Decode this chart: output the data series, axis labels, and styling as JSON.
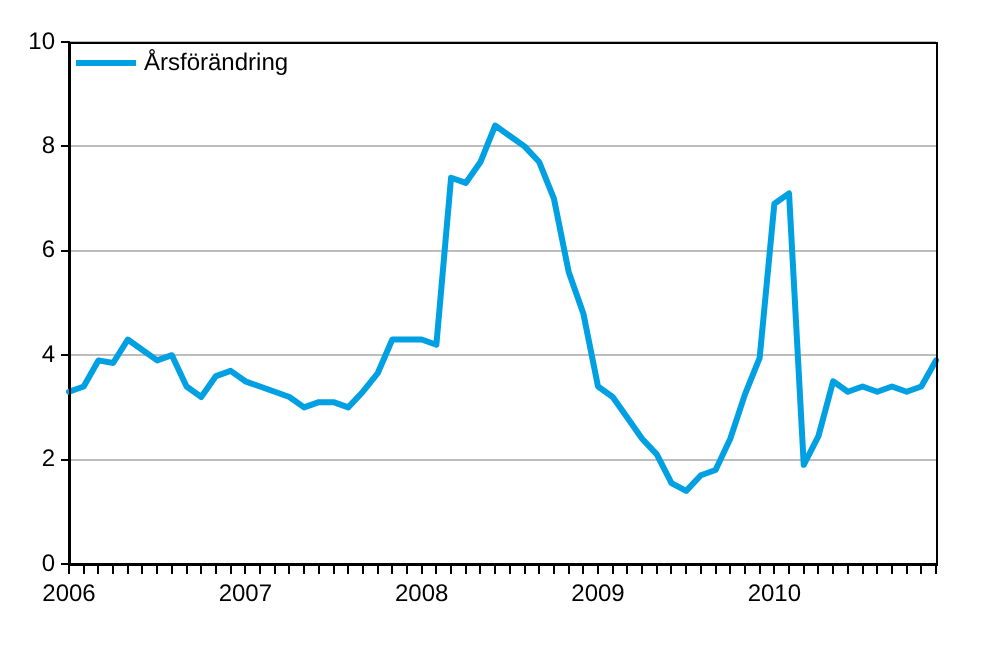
{
  "chart_data": {
    "type": "line",
    "categories": [
      "2006",
      null,
      null,
      null,
      null,
      null,
      null,
      null,
      null,
      null,
      null,
      null,
      "2007",
      null,
      null,
      null,
      null,
      null,
      null,
      null,
      null,
      null,
      null,
      null,
      "2008",
      null,
      null,
      null,
      null,
      null,
      null,
      null,
      null,
      null,
      null,
      null,
      "2009",
      null,
      null,
      null,
      null,
      null,
      null,
      null,
      null,
      null,
      null,
      null,
      "2010",
      null,
      null,
      null,
      null,
      null,
      null,
      null,
      null,
      null,
      null,
      null
    ],
    "series": [
      {
        "name": "Årsförändring",
        "color": "#00a0e3",
        "values": [
          3.3,
          3.4,
          3.9,
          3.85,
          4.3,
          4.1,
          3.9,
          4.0,
          3.4,
          3.2,
          3.6,
          3.7,
          3.5,
          3.4,
          3.3,
          3.2,
          3.0,
          3.1,
          3.1,
          3.0,
          3.3,
          3.65,
          4.3,
          4.3,
          4.3,
          4.2,
          7.4,
          7.3,
          7.7,
          8.4,
          8.2,
          8.0,
          7.7,
          7.0,
          5.6,
          4.8,
          3.4,
          3.2,
          2.8,
          2.4,
          2.1,
          1.55,
          1.4,
          1.7,
          1.8,
          2.4,
          3.25,
          3.95,
          6.9,
          7.1,
          1.9,
          2.45,
          3.5,
          3.3,
          3.4,
          3.3,
          3.4,
          3.3,
          3.4,
          3.9
        ]
      }
    ],
    "ylim": [
      0,
      10
    ],
    "yticks": [
      0,
      2,
      4,
      6,
      8,
      10
    ],
    "grid": "y",
    "legend": "top left",
    "marker": "none",
    "line_style": "solid"
  }
}
